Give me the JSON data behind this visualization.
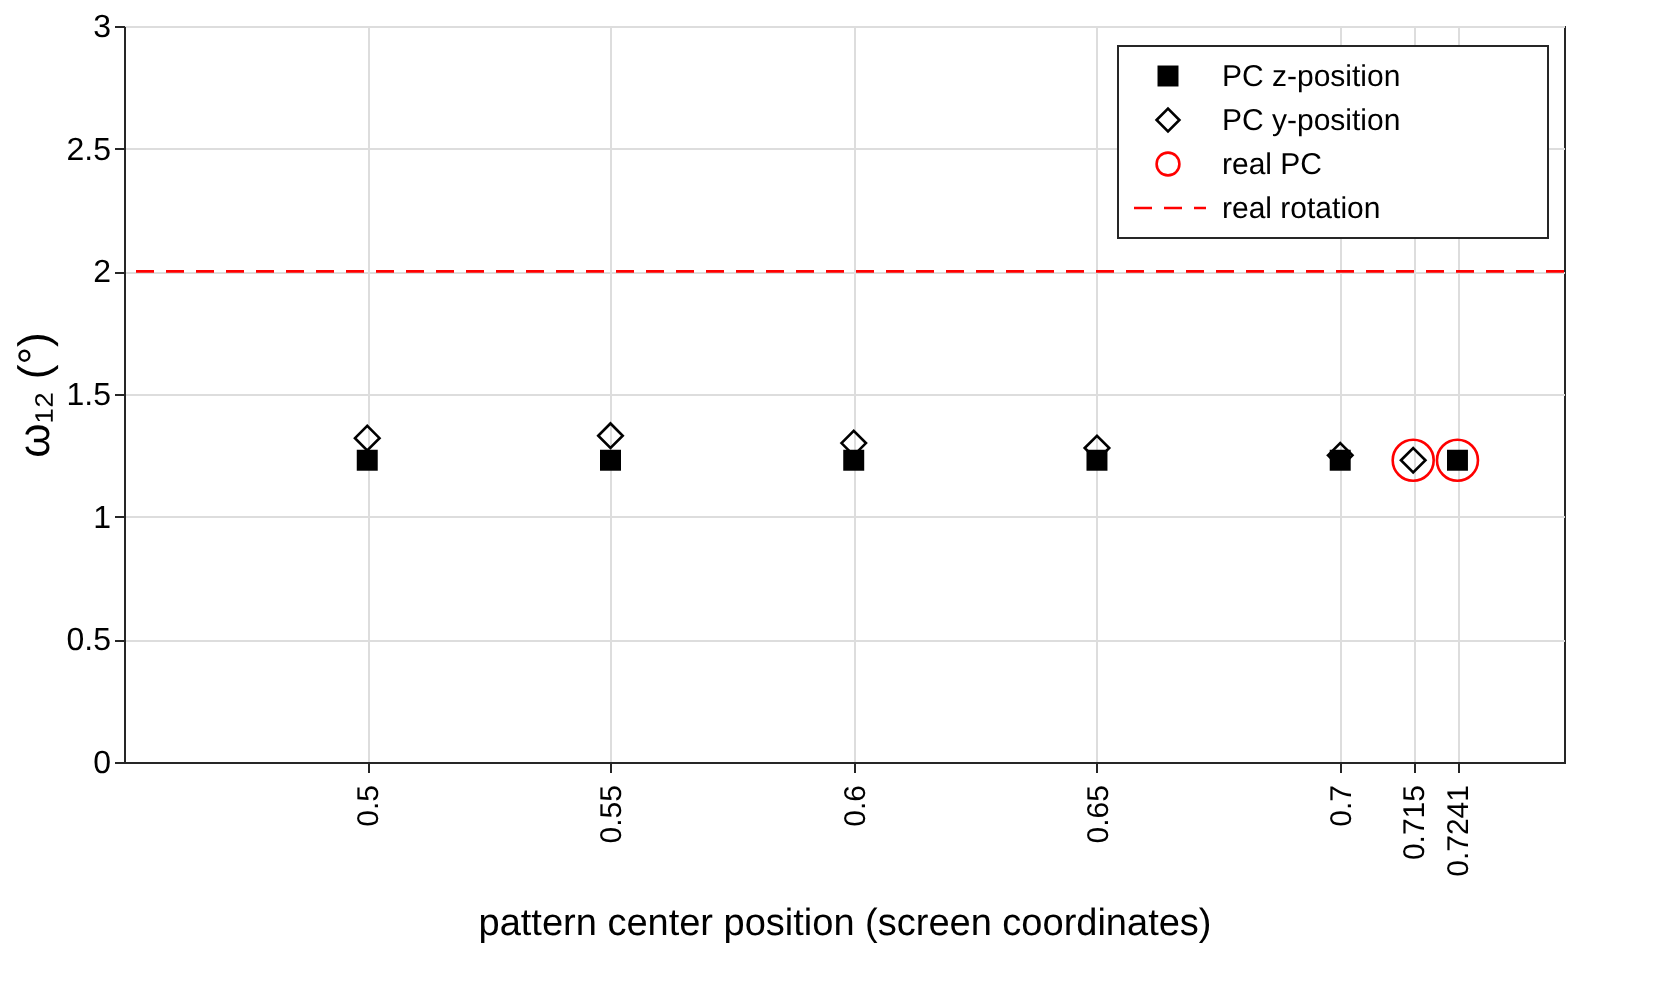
{
  "chart_data": {
    "type": "scatter",
    "xlabel": "pattern center position (screen coordinates)",
    "ylabel": "ω₁₂ (°)",
    "xlim": [
      0.45,
      0.746
    ],
    "xticks": [
      0.5,
      0.55,
      0.6,
      0.65,
      0.7,
      0.715,
      0.7241
    ],
    "ylim": [
      0,
      3
    ],
    "yticks": [
      0,
      0.5,
      1,
      1.5,
      2,
      2.5,
      3
    ],
    "grid": true,
    "legend": "top right",
    "series": [
      {
        "name": "PC z-position",
        "color": "#000000",
        "marker": "square",
        "x": [
          0.5,
          0.55,
          0.6,
          0.65,
          0.7,
          0.7241
        ],
        "values": [
          1.23,
          1.23,
          1.23,
          1.23,
          1.23,
          1.23
        ]
      },
      {
        "name": "PC y-position",
        "color": "#000000",
        "marker": "diamond",
        "x": [
          0.5,
          0.55,
          0.6,
          0.65,
          0.7,
          0.715
        ],
        "values": [
          1.32,
          1.33,
          1.3,
          1.28,
          1.25,
          1.23
        ]
      },
      {
        "name": "real PC",
        "color": "#ff0000",
        "marker": "circle",
        "x": [
          0.715,
          0.7241
        ],
        "values": [
          1.23,
          1.23
        ]
      }
    ],
    "ref_lines": [
      {
        "axis": "y",
        "value": 2,
        "label": "real rotation",
        "color": "#ff0000",
        "line_style": "dashed"
      }
    ]
  }
}
